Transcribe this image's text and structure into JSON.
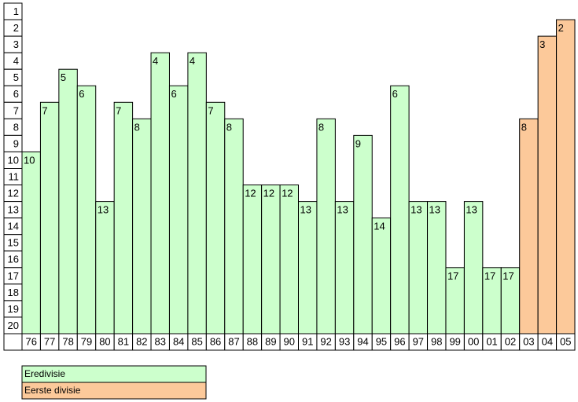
{
  "chart_data": {
    "type": "rank-bar",
    "categories": [
      "76",
      "77",
      "78",
      "79",
      "80",
      "81",
      "82",
      "83",
      "84",
      "85",
      "86",
      "87",
      "88",
      "89",
      "90",
      "91",
      "92",
      "93",
      "94",
      "95",
      "96",
      "97",
      "98",
      "99",
      "00",
      "01",
      "02",
      "03",
      "04",
      "05"
    ],
    "series": [
      {
        "name": "Eredivisie",
        "color": "#ccffcc",
        "values": [
          10,
          7,
          5,
          6,
          13,
          7,
          8,
          4,
          6,
          4,
          7,
          8,
          12,
          12,
          12,
          13,
          8,
          13,
          9,
          14,
          6,
          13,
          13,
          17,
          13,
          17,
          17,
          null,
          null,
          null
        ]
      },
      {
        "name": "Eerste divisie",
        "color": "#fcc99a",
        "values": [
          null,
          null,
          null,
          null,
          null,
          null,
          null,
          null,
          null,
          null,
          null,
          null,
          null,
          null,
          null,
          null,
          null,
          null,
          null,
          null,
          null,
          null,
          null,
          null,
          null,
          null,
          null,
          8,
          3,
          2
        ]
      }
    ],
    "ylim": [
      1,
      20
    ],
    "yticks": [
      1,
      2,
      3,
      4,
      5,
      6,
      7,
      8,
      9,
      10,
      11,
      12,
      13,
      14,
      15,
      16,
      17,
      18,
      19,
      20
    ],
    "y_inverted": true
  }
}
